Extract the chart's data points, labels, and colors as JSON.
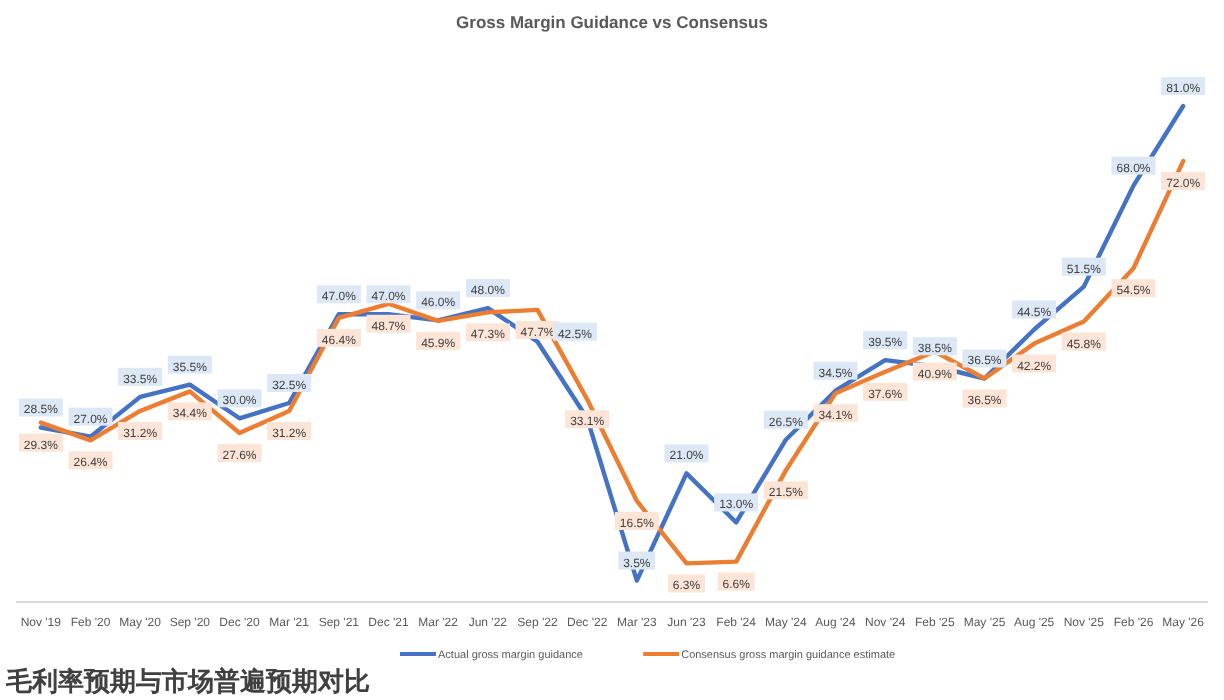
{
  "chart_data": {
    "type": "line",
    "title": "Gross Margin Guidance vs Consensus",
    "categories": [
      "Nov '19",
      "Feb '20",
      "May '20",
      "Sep '20",
      "Dec '20",
      "Mar '21",
      "Sep '21",
      "Dec '21",
      "Mar '22",
      "Jun '22",
      "Sep '22",
      "Dec '22",
      "Mar '23",
      "Jun '23",
      "Feb '24",
      "May '24",
      "Aug '24",
      "Nov '24",
      "Feb '25",
      "May '25",
      "Aug '25",
      "Nov '25",
      "Feb '26",
      "May '26"
    ],
    "series": [
      {
        "name": "Actual gross margin guidance",
        "color": "#4472c4",
        "values": [
          28.5,
          27.0,
          33.5,
          35.5,
          30.0,
          32.5,
          47.0,
          47.0,
          46.0,
          48.0,
          42.5,
          30.0,
          3.5,
          21.0,
          13.0,
          26.5,
          34.5,
          39.5,
          38.5,
          36.5,
          44.5,
          51.5,
          68.0,
          81.0
        ],
        "value_labels": [
          "28.5%",
          "27.0%",
          "33.5%",
          "35.5%",
          "30.0%",
          "32.5%",
          "47.0%",
          "47.0%",
          "46.0%",
          "48.0%",
          "42.5%",
          null,
          "3.5%",
          "21.0%",
          "13.0%",
          "26.5%",
          "34.5%",
          "39.5%",
          "38.5%",
          "36.5%",
          "44.5%",
          "51.5%",
          "68.0%",
          "81.0%"
        ]
      },
      {
        "name": "Consensus gross margin guidance estimate",
        "color": "#ed7d31",
        "values": [
          29.3,
          26.4,
          31.2,
          34.4,
          27.6,
          31.2,
          46.4,
          48.7,
          45.9,
          47.3,
          47.7,
          33.1,
          16.5,
          6.3,
          6.6,
          21.5,
          34.1,
          37.6,
          40.9,
          36.5,
          42.2,
          45.8,
          54.5,
          72.0
        ],
        "value_labels": [
          "29.3%",
          "26.4%",
          "31.2%",
          "34.4%",
          "27.6%",
          "31.2%",
          "46.4%",
          "48.7%",
          "45.9%",
          "47.3%",
          "47.7%",
          "33.1%",
          "16.5%",
          "6.3%",
          "6.6%",
          "21.5%",
          "34.1%",
          "37.6%",
          "40.9%",
          "36.5%",
          "42.2%",
          "45.8%",
          "54.5%",
          "72.0%"
        ]
      }
    ],
    "relative": false,
    "legend": "bottom",
    "annotations": [
      "毛利率预期与市场普遍预期对比"
    ]
  }
}
